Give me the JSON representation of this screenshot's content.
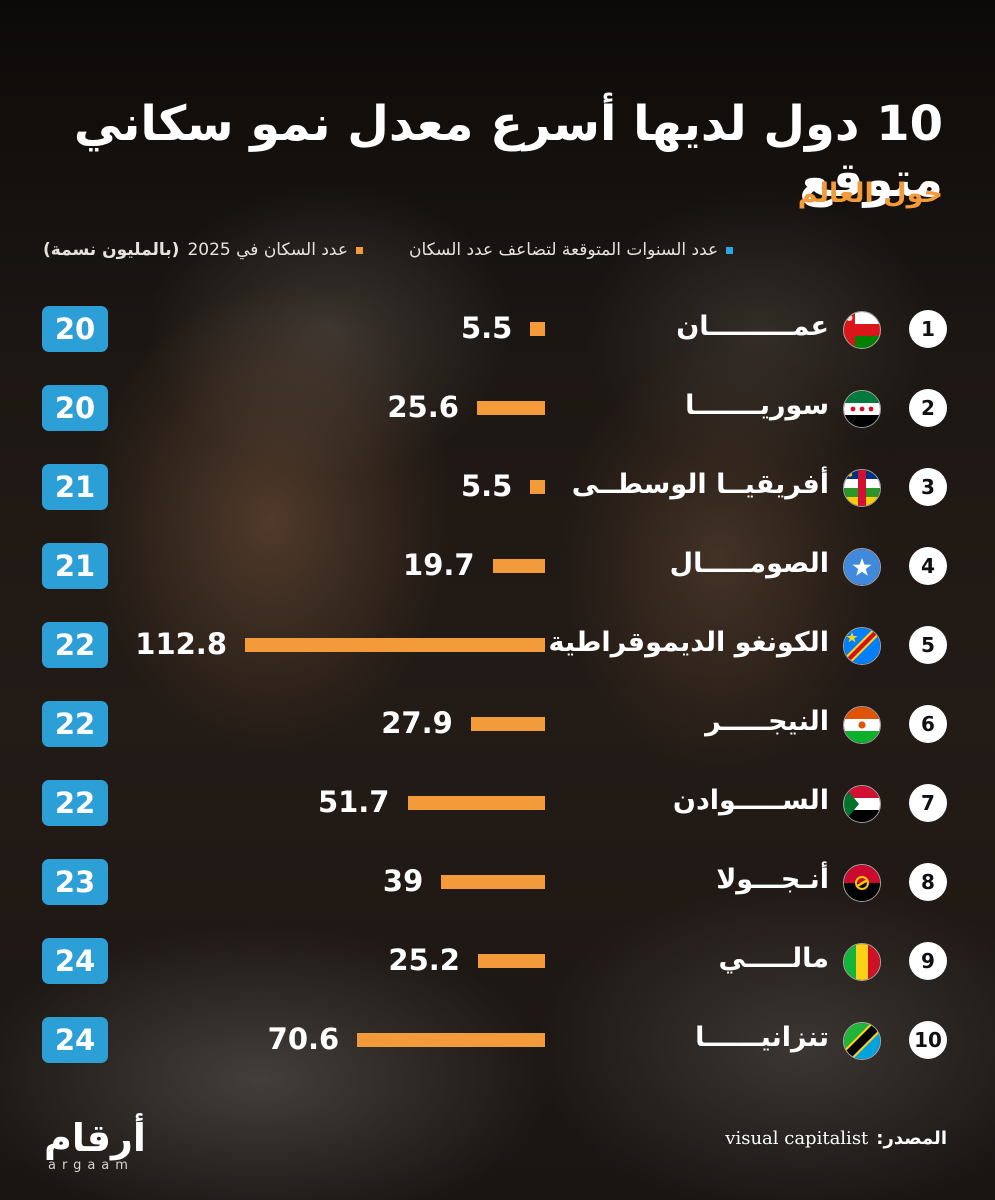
{
  "title": "10 دول لديها أسرع معدل نمو سكاني متوقع",
  "subtitle": "حول العالم",
  "legend": {
    "population_label": "عدد السكان في 2025",
    "population_unit": "(بالمليون نسمة)",
    "years_label": "عدد السنوات المتوقعة لتضاعف عدد السكان"
  },
  "colors": {
    "bar": "#f39a3b",
    "years_badge": "#2b9fd6",
    "subtitle": "#f39a3b"
  },
  "chart_data": {
    "type": "bar",
    "orientation": "horizontal",
    "categories": [
      "عمـــــــــان",
      "سوريـــــــا",
      "أفريقيــا الوسطــى",
      "الصومـــــال",
      "الكونغو الديموقراطية",
      "النيجـــــر",
      "الســـــوادن",
      "أنـجـــولا",
      "مالـــــي",
      "تنزانيــــــا"
    ],
    "ranks": [
      "1",
      "2",
      "3",
      "4",
      "5",
      "6",
      "7",
      "8",
      "9",
      "10"
    ],
    "flags": [
      "oman",
      "syria",
      "central-african-republic",
      "somalia",
      "dr-congo",
      "niger",
      "sudan",
      "angola",
      "mali",
      "tanzania"
    ],
    "series": [
      {
        "name": "عدد السكان في 2025 (بالمليون نسمة)",
        "values": [
          5.5,
          25.6,
          5.5,
          19.7,
          112.8,
          27.9,
          51.7,
          39,
          25.2,
          70.6
        ]
      },
      {
        "name": "عدد السنوات المتوقعة لتضاعف عدد السكان",
        "values": [
          20,
          20,
          21,
          21,
          22,
          22,
          22,
          23,
          24,
          24
        ]
      }
    ],
    "value_labels": [
      "5.5",
      "25.6",
      "5.5",
      "19.7",
      "112.8",
      "27.9",
      "51.7",
      "39",
      "25.2",
      "70.6"
    ],
    "years_labels": [
      "20",
      "20",
      "21",
      "21",
      "22",
      "22",
      "22",
      "23",
      "24",
      "24"
    ]
  },
  "footer": {
    "logo_ar": "أرقام",
    "logo_en": "argaam",
    "source_label": "المصدر:",
    "source_value": "visual capitalist"
  }
}
